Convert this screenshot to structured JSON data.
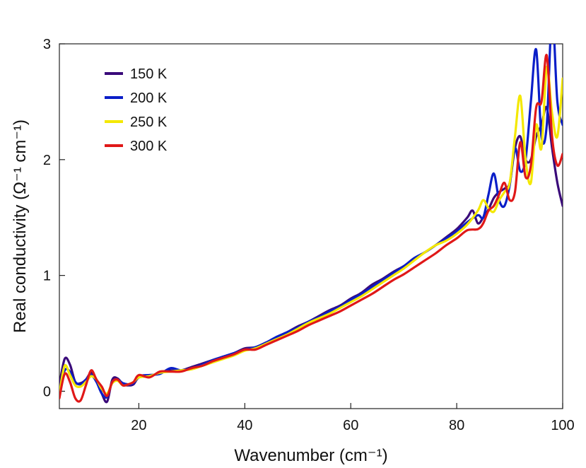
{
  "chart_data": {
    "type": "line",
    "xlabel": "Wavenumber (cm⁻¹)",
    "ylabel": "Real conductivity (Ω⁻¹ cm⁻¹)",
    "xlim": [
      5,
      100
    ],
    "ylim": [
      -0.15,
      3.0
    ],
    "xticks": [
      20,
      40,
      60,
      80,
      100
    ],
    "yticks": [
      0,
      1,
      2,
      3
    ],
    "grid": false,
    "legend_position": "top-left",
    "series": [
      {
        "name": "150 K",
        "color": "#3a0a7a",
        "x": [
          5,
          6,
          7,
          8,
          9,
          10,
          11,
          12,
          13,
          14,
          15,
          16,
          17,
          18,
          19,
          20,
          22,
          24,
          26,
          28,
          30,
          32,
          34,
          36,
          38,
          40,
          42,
          44,
          46,
          48,
          50,
          52,
          54,
          56,
          58,
          60,
          62,
          64,
          66,
          68,
          70,
          72,
          74,
          76,
          78,
          80,
          82,
          83,
          84,
          85,
          86,
          87,
          88,
          89,
          90,
          91,
          92,
          93,
          94,
          95,
          96,
          97,
          98,
          99,
          100
        ],
        "y": [
          0.05,
          0.28,
          0.23,
          0.08,
          0.07,
          0.1,
          0.16,
          0.1,
          -0.02,
          -0.09,
          0.1,
          0.11,
          0.06,
          0.05,
          0.06,
          0.12,
          0.13,
          0.16,
          0.18,
          0.18,
          0.21,
          0.24,
          0.27,
          0.3,
          0.33,
          0.37,
          0.38,
          0.42,
          0.46,
          0.51,
          0.56,
          0.6,
          0.65,
          0.7,
          0.74,
          0.8,
          0.85,
          0.92,
          0.97,
          1.03,
          1.08,
          1.14,
          1.2,
          1.26,
          1.33,
          1.4,
          1.5,
          1.56,
          1.45,
          1.5,
          1.57,
          1.67,
          1.72,
          1.75,
          1.8,
          2.1,
          2.2,
          2.0,
          2.0,
          2.2,
          2.3,
          2.45,
          2.1,
          1.8,
          1.6
        ]
      },
      {
        "name": "200 K",
        "color": "#0a1ec8",
        "x": [
          5,
          6,
          7,
          8,
          9,
          10,
          11,
          12,
          13,
          14,
          15,
          16,
          17,
          18,
          19,
          20,
          22,
          24,
          26,
          28,
          30,
          32,
          34,
          36,
          38,
          40,
          42,
          44,
          46,
          48,
          50,
          52,
          54,
          56,
          58,
          60,
          62,
          64,
          66,
          68,
          70,
          72,
          74,
          76,
          78,
          80,
          82,
          84,
          85,
          86,
          87,
          88,
          89,
          90,
          91,
          92,
          93,
          94,
          95,
          96,
          97,
          98,
          99,
          100
        ],
        "y": [
          0.0,
          0.18,
          0.17,
          0.08,
          0.06,
          0.1,
          0.14,
          0.08,
          -0.02,
          -0.05,
          0.08,
          0.1,
          0.07,
          0.06,
          0.07,
          0.13,
          0.14,
          0.15,
          0.2,
          0.18,
          0.2,
          0.23,
          0.27,
          0.3,
          0.33,
          0.36,
          0.38,
          0.42,
          0.47,
          0.51,
          0.55,
          0.6,
          0.64,
          0.69,
          0.73,
          0.79,
          0.84,
          0.9,
          0.96,
          1.02,
          1.08,
          1.15,
          1.2,
          1.26,
          1.32,
          1.38,
          1.46,
          1.52,
          1.5,
          1.7,
          1.88,
          1.65,
          1.6,
          1.78,
          2.1,
          1.9,
          2.0,
          2.5,
          2.95,
          2.2,
          2.3,
          3.25,
          2.5,
          2.3
        ]
      },
      {
        "name": "250 K",
        "color": "#f4e800",
        "x": [
          5,
          6,
          7,
          8,
          9,
          10,
          11,
          12,
          13,
          14,
          15,
          16,
          17,
          18,
          19,
          20,
          22,
          24,
          26,
          28,
          30,
          32,
          34,
          36,
          38,
          40,
          42,
          44,
          46,
          48,
          50,
          52,
          54,
          56,
          58,
          60,
          62,
          64,
          66,
          68,
          70,
          72,
          74,
          76,
          78,
          80,
          82,
          84,
          85,
          86,
          87,
          88,
          89,
          90,
          91,
          92,
          93,
          94,
          95,
          96,
          97,
          98,
          99,
          100
        ],
        "y": [
          -0.02,
          0.22,
          0.14,
          0.05,
          0.04,
          0.08,
          0.13,
          0.1,
          0.02,
          -0.02,
          0.07,
          0.09,
          0.05,
          0.06,
          0.08,
          0.12,
          0.13,
          0.16,
          0.17,
          0.18,
          0.19,
          0.22,
          0.25,
          0.28,
          0.31,
          0.35,
          0.37,
          0.41,
          0.45,
          0.49,
          0.54,
          0.59,
          0.63,
          0.67,
          0.72,
          0.77,
          0.82,
          0.88,
          0.94,
          1.0,
          1.06,
          1.13,
          1.2,
          1.26,
          1.3,
          1.36,
          1.44,
          1.56,
          1.65,
          1.58,
          1.55,
          1.65,
          1.72,
          1.8,
          2.2,
          2.55,
          2.0,
          1.8,
          2.3,
          2.1,
          2.8,
          2.4,
          2.2,
          2.7
        ]
      },
      {
        "name": "300 K",
        "color": "#e01818",
        "x": [
          5,
          6,
          7,
          8,
          9,
          10,
          11,
          12,
          13,
          14,
          15,
          16,
          17,
          18,
          19,
          20,
          22,
          24,
          26,
          28,
          30,
          32,
          34,
          36,
          38,
          40,
          42,
          44,
          46,
          48,
          50,
          52,
          54,
          56,
          58,
          60,
          62,
          64,
          66,
          68,
          70,
          72,
          74,
          76,
          78,
          80,
          82,
          84,
          85,
          86,
          87,
          88,
          89,
          90,
          91,
          92,
          93,
          94,
          95,
          96,
          97,
          98,
          99,
          100
        ],
        "y": [
          -0.06,
          0.15,
          0.08,
          -0.06,
          -0.08,
          0.05,
          0.18,
          0.1,
          0.04,
          -0.04,
          0.08,
          0.1,
          0.05,
          0.06,
          0.08,
          0.14,
          0.12,
          0.17,
          0.17,
          0.17,
          0.2,
          0.22,
          0.26,
          0.29,
          0.32,
          0.36,
          0.36,
          0.4,
          0.44,
          0.48,
          0.52,
          0.57,
          0.61,
          0.65,
          0.69,
          0.74,
          0.79,
          0.84,
          0.9,
          0.96,
          1.01,
          1.07,
          1.13,
          1.19,
          1.26,
          1.32,
          1.39,
          1.4,
          1.45,
          1.56,
          1.6,
          1.7,
          1.8,
          1.65,
          1.72,
          2.15,
          1.85,
          1.95,
          2.45,
          2.5,
          2.9,
          2.2,
          1.95,
          2.05
        ]
      }
    ]
  }
}
